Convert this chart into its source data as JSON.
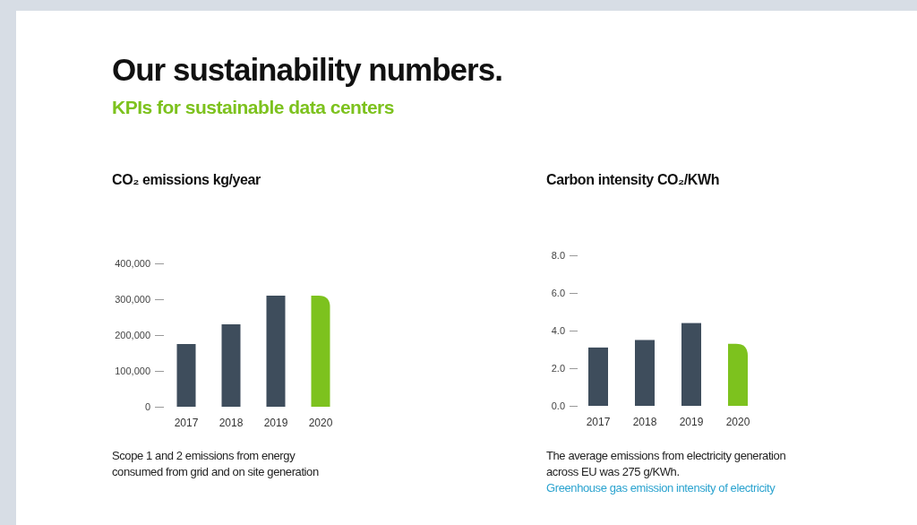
{
  "chart_data": [
    {
      "type": "other",
      "title": "Our sustainability numbers.",
      "subtitle": "KPIs for sustainable data centers"
    },
    {
      "type": "bar",
      "title": "CO₂ emissions kg/year",
      "categories": [
        "2017",
        "2018",
        "2019",
        "2020"
      ],
      "values": [
        175000,
        230000,
        310000,
        310000
      ],
      "colors": [
        "#3e4d5c",
        "#3e4d5c",
        "#3e4d5c",
        "#7dc21e"
      ],
      "ylim": [
        0,
        400000
      ],
      "yticks": [
        {
          "value": 0,
          "label": "0"
        },
        {
          "value": 100000,
          "label": "100,000"
        },
        {
          "value": 200000,
          "label": "200,000"
        },
        {
          "value": 300000,
          "label": "300,000"
        },
        {
          "value": 400000,
          "label": "400,000"
        }
      ],
      "grid": false,
      "annotations": [
        "Scope 1 and 2 emissions from energy consumed from grid and on site generation"
      ]
    },
    {
      "type": "bar",
      "title": "Carbon intensity CO₂/KWh",
      "categories": [
        "2017",
        "2018",
        "2019",
        "2020"
      ],
      "values": [
        3.1,
        3.5,
        4.4,
        3.3
      ],
      "colors": [
        "#3e4d5c",
        "#3e4d5c",
        "#3e4d5c",
        "#7dc21e"
      ],
      "ylim": [
        0,
        8
      ],
      "yticks": [
        {
          "value": 0,
          "label": "0.0"
        },
        {
          "value": 2,
          "label": "2.0"
        },
        {
          "value": 4,
          "label": "4.0"
        },
        {
          "value": 6,
          "label": "6.0"
        },
        {
          "value": 8,
          "label": "8.0"
        }
      ],
      "grid": false,
      "annotations": [
        "The average emissions from electricity generation across EU was 275 g/KWh.",
        "Greenhouse gas emission intensity of electricity"
      ]
    }
  ]
}
